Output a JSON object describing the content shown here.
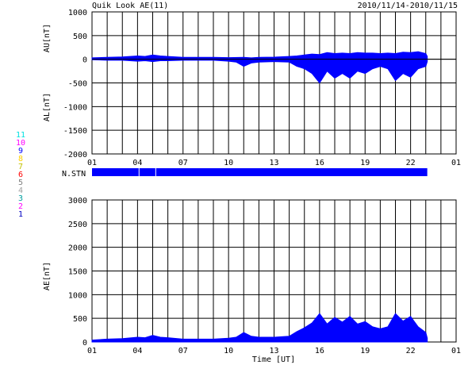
{
  "header": {
    "title": "Quik Look AE(11)",
    "date_range": "2010/11/14-2010/11/15"
  },
  "colors": {
    "series": "#0000ff",
    "grid": "#000000",
    "background": "#ffffff"
  },
  "station_legend": [
    {
      "label": "11",
      "color": "#00e0e0"
    },
    {
      "label": "10",
      "color": "#ff00ff"
    },
    {
      "label": "9",
      "color": "#0000ff"
    },
    {
      "label": "8",
      "color": "#ffd000"
    },
    {
      "label": "7",
      "color": "#c0c000"
    },
    {
      "label": "6",
      "color": "#ff0000"
    },
    {
      "label": "5",
      "color": "#808080"
    },
    {
      "label": "4",
      "color": "#a0a0a0"
    },
    {
      "label": "3",
      "color": "#00a0a0"
    },
    {
      "label": "2",
      "color": "#ff00ff"
    },
    {
      "label": "1",
      "color": "#0000c0"
    }
  ],
  "nstn": {
    "label": "N.STN",
    "coverage_hours": [
      1,
      23.1
    ],
    "gap_hours": [
      4.1,
      5.2
    ]
  },
  "chart_data": [
    {
      "type": "area",
      "ylabel_top": "AU[nT]",
      "ylabel_bottom": "AL[nT]",
      "x_ticks": [
        "01",
        "04",
        "07",
        "10",
        "13",
        "16",
        "19",
        "22",
        "01"
      ],
      "x_tick_hours": [
        1,
        4,
        7,
        10,
        13,
        16,
        19,
        22,
        25
      ],
      "xlim_hours": [
        1,
        25
      ],
      "ylim": [
        -2000,
        1000
      ],
      "y_ticks": [
        1000,
        500,
        0,
        -500,
        -1000,
        -1500,
        -2000
      ],
      "y_tick_labels": [
        "1000",
        "500",
        "0",
        "-500",
        "-1000",
        "-1500",
        "-2000"
      ],
      "grid": true,
      "series": [
        {
          "key": "AU",
          "x_hours": [
            1,
            2,
            3,
            4,
            4.5,
            5,
            5.5,
            6,
            7,
            8,
            9,
            10,
            11,
            11.5,
            12,
            13,
            14,
            14.5,
            15,
            15.5,
            16,
            16.5,
            17,
            17.5,
            18,
            18.5,
            19,
            19.5,
            20,
            20.5,
            21,
            21.5,
            22,
            22.5,
            23,
            23.1
          ],
          "values": [
            30,
            40,
            50,
            70,
            60,
            90,
            70,
            60,
            40,
            40,
            40,
            35,
            40,
            30,
            40,
            45,
            60,
            70,
            90,
            110,
            100,
            140,
            120,
            130,
            120,
            140,
            130,
            130,
            120,
            130,
            120,
            150,
            140,
            160,
            120,
            60
          ]
        },
        {
          "key": "AL",
          "x_hours": [
            1,
            2,
            3,
            4,
            4.5,
            5,
            5.5,
            6,
            7,
            8,
            9,
            10,
            10.5,
            11,
            11.5,
            12,
            13,
            14,
            14.5,
            15,
            15.5,
            16,
            16.5,
            17,
            17.5,
            18,
            18.5,
            19,
            19.5,
            20,
            20.5,
            21,
            21.5,
            22,
            22.5,
            23,
            23.1
          ],
          "values": [
            -10,
            -20,
            -20,
            -40,
            -30,
            -50,
            -30,
            -30,
            -20,
            -20,
            -20,
            -40,
            -60,
            -150,
            -80,
            -60,
            -50,
            -60,
            -150,
            -200,
            -300,
            -500,
            -250,
            -400,
            -300,
            -400,
            -250,
            -300,
            -200,
            -150,
            -200,
            -450,
            -300,
            -380,
            -200,
            -150,
            -50
          ]
        }
      ]
    },
    {
      "type": "area",
      "ylabel": "AE[nT]",
      "xlabel": "Time [UT]",
      "x_ticks": [
        "01",
        "04",
        "07",
        "10",
        "13",
        "16",
        "19",
        "22",
        "01"
      ],
      "x_tick_hours": [
        1,
        4,
        7,
        10,
        13,
        16,
        19,
        22,
        25
      ],
      "xlim_hours": [
        1,
        25
      ],
      "ylim": [
        0,
        3000
      ],
      "y_ticks": [
        3000,
        2500,
        2000,
        1500,
        1000,
        500,
        0
      ],
      "y_tick_labels": [
        "3000",
        "2500",
        "2000",
        "1500",
        "1000",
        "500",
        "0"
      ],
      "grid": true,
      "series": [
        {
          "key": "AE",
          "x_hours": [
            1,
            2,
            3,
            4,
            4.5,
            5,
            5.5,
            6,
            7,
            8,
            9,
            10,
            10.5,
            11,
            11.5,
            12,
            13,
            14,
            14.5,
            15,
            15.5,
            16,
            16.5,
            17,
            17.5,
            18,
            18.5,
            19,
            19.5,
            20,
            20.5,
            21,
            21.5,
            22,
            22.5,
            23,
            23.1
          ],
          "values": [
            40,
            60,
            70,
            100,
            90,
            140,
            100,
            90,
            60,
            60,
            60,
            80,
            100,
            200,
            120,
            100,
            100,
            120,
            220,
            300,
            400,
            600,
            380,
            520,
            420,
            540,
            380,
            430,
            320,
            280,
            320,
            600,
            440,
            540,
            320,
            200,
            80
          ]
        }
      ]
    }
  ]
}
